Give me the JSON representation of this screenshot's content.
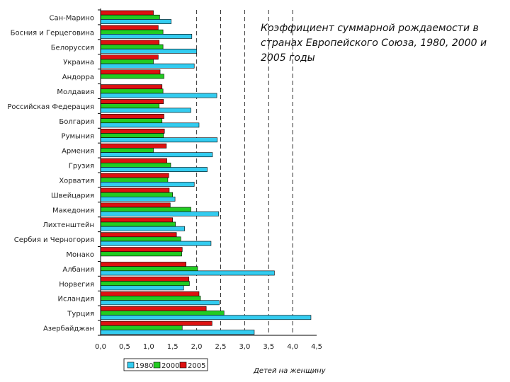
{
  "chart_data": {
    "type": "bar",
    "orientation": "horizontal",
    "title": "Коэффициент суммарной рождаемости в странах Европейского Союза, 1980, 2000 и 2005 годы",
    "xlabel": "Детей на женщину",
    "ylabel": "",
    "xlim": [
      0,
      4.5
    ],
    "xticks": [
      "0,0",
      "0,5",
      "1,0",
      "1,5",
      "2,0",
      "2,5",
      "3,0",
      "3,5",
      "4,0",
      "4,5"
    ],
    "grid": "vertical dashed at 2,0 2,5 3,0 3,5 4,0",
    "legend_position": "bottom-left",
    "categories": [
      "Сан-Марино",
      "Босния и Герцеговина",
      "Белоруссия",
      "Украина",
      "Андорра",
      "Молдавия",
      "Российская Федерация",
      "Болгария",
      "Румыния",
      "Армения",
      "Грузия",
      "Хорватия",
      "Швейцария",
      "Македония",
      "Лихтенштейн",
      "Сербия и Черногория",
      "Монако",
      "Албания",
      "Норвегия",
      "Исландия",
      "Турция",
      "Азербайджан"
    ],
    "series": [
      {
        "name": "1980",
        "color": "#33ccf0",
        "values": [
          1.47,
          1.9,
          2.0,
          1.95,
          null,
          2.42,
          1.88,
          2.05,
          2.43,
          2.33,
          2.22,
          1.95,
          1.55,
          2.46,
          1.75,
          2.3,
          null,
          3.62,
          1.73,
          2.47,
          4.38,
          3.2
        ]
      },
      {
        "name": "2000",
        "color": "#22cc22",
        "values": [
          1.23,
          1.3,
          1.3,
          1.1,
          1.32,
          1.3,
          1.22,
          1.28,
          1.31,
          1.1,
          1.46,
          1.4,
          1.5,
          1.88,
          1.56,
          1.67,
          1.69,
          2.02,
          1.85,
          2.08,
          2.57,
          1.7
        ]
      },
      {
        "name": "2005",
        "color": "#dd1111",
        "values": [
          1.1,
          1.2,
          1.22,
          1.2,
          1.24,
          1.28,
          1.31,
          1.32,
          1.33,
          1.37,
          1.38,
          1.42,
          1.43,
          1.45,
          1.5,
          1.58,
          1.7,
          1.78,
          1.84,
          2.05,
          2.2,
          2.32
        ]
      }
    ]
  }
}
